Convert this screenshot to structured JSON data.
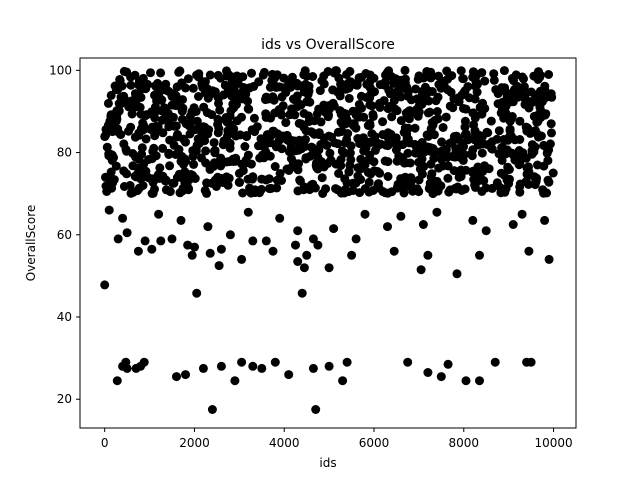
{
  "chart_data": {
    "type": "scatter",
    "title": "ids vs OverallScore",
    "xlabel": "ids",
    "ylabel": "OverallScore",
    "xlim": [
      -550,
      10500
    ],
    "ylim": [
      13,
      103
    ],
    "x_ticks": [
      0,
      2000,
      4000,
      6000,
      8000,
      10000
    ],
    "y_ticks": [
      20,
      40,
      60,
      80,
      100
    ],
    "x_tick_labels": [
      "0",
      "2000",
      "4000",
      "6000",
      "8000",
      "10000"
    ],
    "y_tick_labels": [
      "20",
      "40",
      "60",
      "80",
      "100"
    ],
    "grid": false,
    "marker_color": "#000000",
    "dense_band": {
      "x_range": [
        0,
        10000
      ],
      "y_range": [
        70,
        100
      ],
      "approx_count": 1200
    },
    "series": [
      {
        "points": [
          [
            0,
            47.8
          ],
          [
            2050,
            45.8
          ],
          [
            4400,
            45.8
          ],
          [
            280,
            24.5
          ],
          [
            400,
            28
          ],
          [
            470,
            29
          ],
          [
            500,
            27.5
          ],
          [
            700,
            27.5
          ],
          [
            800,
            28
          ],
          [
            880,
            29
          ],
          [
            1600,
            25.5
          ],
          [
            1800,
            26
          ],
          [
            2200,
            27.5
          ],
          [
            2400,
            17.5
          ],
          [
            2600,
            28
          ],
          [
            2900,
            24.5
          ],
          [
            3050,
            29
          ],
          [
            3300,
            28
          ],
          [
            3500,
            27.5
          ],
          [
            3800,
            29
          ],
          [
            4100,
            26
          ],
          [
            4650,
            27.5
          ],
          [
            4700,
            17.5
          ],
          [
            5000,
            28
          ],
          [
            5300,
            24.5
          ],
          [
            5400,
            29
          ],
          [
            6750,
            29
          ],
          [
            7200,
            26.5
          ],
          [
            7500,
            25.5
          ],
          [
            7650,
            28.5
          ],
          [
            8050,
            24.5
          ],
          [
            8350,
            24.5
          ],
          [
            8700,
            29
          ],
          [
            9400,
            29
          ],
          [
            9500,
            29
          ],
          [
            300,
            59
          ],
          [
            750,
            56
          ],
          [
            900,
            58.5
          ],
          [
            1050,
            56.5
          ],
          [
            1250,
            58.5
          ],
          [
            1500,
            59
          ],
          [
            1850,
            57.5
          ],
          [
            1950,
            55
          ],
          [
            2000,
            57
          ],
          [
            2350,
            55.5
          ],
          [
            2550,
            52.5
          ],
          [
            2600,
            56.5
          ],
          [
            3050,
            54
          ],
          [
            3300,
            58.5
          ],
          [
            3600,
            58.5
          ],
          [
            3750,
            56
          ],
          [
            4250,
            57.5
          ],
          [
            4300,
            53.5
          ],
          [
            4450,
            52
          ],
          [
            4500,
            55
          ],
          [
            4650,
            59
          ],
          [
            4750,
            57.5
          ],
          [
            5000,
            52
          ],
          [
            5500,
            55
          ],
          [
            5600,
            59
          ],
          [
            6450,
            56
          ],
          [
            7050,
            51.5
          ],
          [
            7200,
            55
          ],
          [
            7850,
            50.5
          ],
          [
            8350,
            55
          ],
          [
            9450,
            56
          ],
          [
            9900,
            54
          ],
          [
            500,
            60.5
          ],
          [
            2800,
            60
          ],
          [
            4300,
            61
          ],
          [
            5100,
            61.5
          ],
          [
            6300,
            62
          ],
          [
            7100,
            62.5
          ],
          [
            8500,
            61
          ],
          [
            9100,
            62.5
          ],
          [
            9800,
            63.5
          ],
          [
            100,
            66
          ],
          [
            400,
            64
          ],
          [
            1200,
            65
          ],
          [
            1700,
            63.5
          ],
          [
            2300,
            62
          ],
          [
            3200,
            65.5
          ],
          [
            3900,
            64
          ],
          [
            5800,
            65
          ],
          [
            6600,
            64.5
          ],
          [
            7400,
            65.5
          ],
          [
            8200,
            63.5
          ],
          [
            9300,
            65
          ]
        ]
      }
    ]
  }
}
